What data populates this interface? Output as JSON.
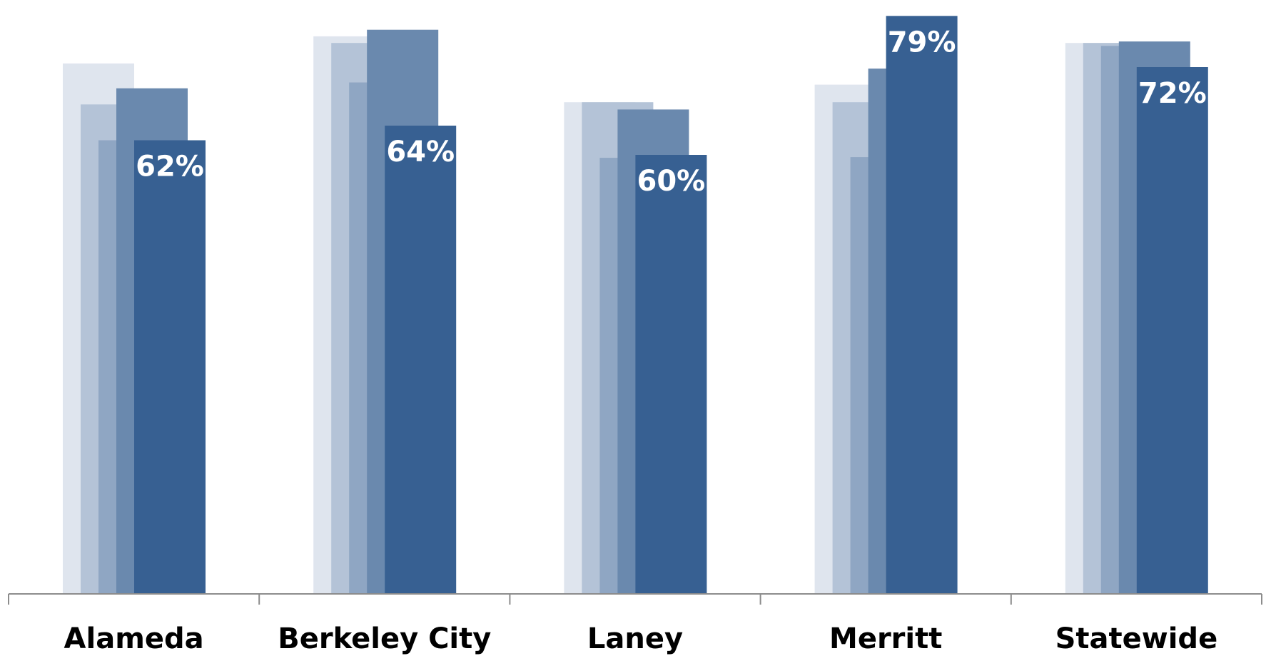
{
  "chart_data": {
    "type": "bar",
    "categories": [
      "Alameda",
      "Berkeley City",
      "Laney",
      "Merritt",
      "Statewide"
    ],
    "ylim": [
      0,
      82
    ],
    "grid": false,
    "legend": "none",
    "series": [
      {
        "values": [
          72.5,
          76.2,
          67.2,
          69.6,
          75.3
        ],
        "color": "#dfe5ee"
      },
      {
        "values": [
          66.9,
          75.3,
          67.2,
          67.2,
          75.3
        ],
        "color": "#b4c3d7"
      },
      {
        "values": [
          62.0,
          69.9,
          59.6,
          59.7,
          74.9
        ],
        "color": "#8fa6c3"
      },
      {
        "values": [
          69.1,
          77.1,
          66.2,
          71.8,
          75.5
        ],
        "color": "#6a89ae"
      },
      {
        "values": [
          62,
          64,
          60,
          79,
          72
        ],
        "color": "#376092",
        "labels": [
          "62%",
          "64%",
          "60%",
          "79%",
          "72%"
        ]
      }
    ]
  }
}
